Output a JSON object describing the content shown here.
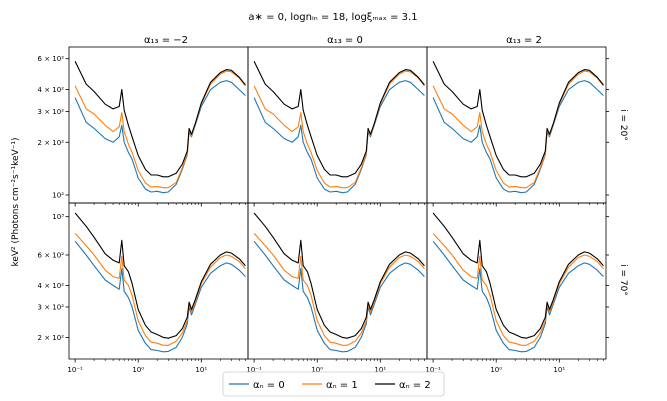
{
  "suptitle": "a∗ = 0, lognᵢₙ = 18, logξₘₐₓ = 3.1",
  "ylabel": "keV² (Photons cm⁻²s⁻¹keV⁻¹)",
  "columns": [
    "α₁₃ = −2",
    "α₁₃ = 0",
    "α₁₃ = 2"
  ],
  "rows": [
    "i = 20°",
    "i = 70°"
  ],
  "x_tick_labels": [
    "10⁻¹",
    "10⁰",
    "10¹"
  ],
  "legend": [
    {
      "label": "αₙ = 0",
      "color": "#1f77b4"
    },
    {
      "label": "αₙ = 1",
      "color": "#ff7f0e"
    },
    {
      "label": "αₙ = 2",
      "color": "#000000"
    }
  ],
  "chart_data": {
    "type": "line",
    "xscale": "log",
    "yscale": "log",
    "xlabel": "",
    "ylabel": "keV² (Photons cm⁻²s⁻¹keV⁻¹)",
    "xlim": [
      0.08,
      55
    ],
    "rows": [
      {
        "label": "i = 20°",
        "ylim": [
          90,
          700
        ],
        "y_ticks": [
          {
            "value": 100,
            "label": "10²"
          },
          {
            "value": 200,
            "label": "2 × 10²"
          },
          {
            "value": 300,
            "label": "3 × 10²"
          },
          {
            "value": 400,
            "label": "4 × 10²"
          },
          {
            "value": 600,
            "label": "6 × 10²"
          }
        ],
        "x": [
          0.1,
          0.15,
          0.2,
          0.3,
          0.4,
          0.5,
          0.55,
          0.6,
          0.7,
          0.8,
          1.0,
          1.3,
          1.6,
          2,
          2.5,
          3,
          4,
          5,
          6,
          6.4,
          7,
          8,
          10,
          14,
          20,
          25,
          30,
          40,
          50
        ],
        "series": [
          {
            "name": "αₙ = 0",
            "color": "#1f77b4",
            "values": [
              360,
              260,
              240,
              210,
              200,
              215,
              250,
              200,
              175,
              160,
              125,
              108,
              104,
              105,
              103,
              104,
              115,
              140,
              170,
              230,
              215,
              250,
              320,
              400,
              440,
              450,
              440,
              400,
              370
            ]
          },
          {
            "name": "αₙ = 1",
            "color": "#ff7f0e",
            "values": [
              420,
              310,
              290,
              250,
              230,
              245,
              295,
              230,
              195,
              175,
              138,
              117,
              111,
              112,
              110,
              110,
              118,
              143,
              172,
              235,
              218,
              253,
              330,
              430,
              490,
              510,
              505,
              465,
              420
            ]
          },
          {
            "name": "αₙ = 2",
            "color": "#000000",
            "values": [
              580,
              430,
              390,
              330,
              310,
              320,
              400,
              305,
              250,
              215,
              168,
              140,
              130,
              130,
              127,
              127,
              133,
              150,
              178,
              240,
              222,
              255,
              335,
              440,
              500,
              520,
              515,
              470,
              425
            ]
          }
        ]
      },
      {
        "label": "i = 70°",
        "ylim": [
          150,
          1200
        ],
        "y_ticks": [
          {
            "value": 200,
            "label": "2 × 10²"
          },
          {
            "value": 300,
            "label": "3 × 10²"
          },
          {
            "value": 400,
            "label": "4 × 10²"
          },
          {
            "value": 600,
            "label": "6 × 10²"
          },
          {
            "value": 1000,
            "label": "10³"
          }
        ],
        "x": [
          0.1,
          0.15,
          0.2,
          0.3,
          0.4,
          0.5,
          0.55,
          0.6,
          0.7,
          0.8,
          1.0,
          1.3,
          1.6,
          2,
          2.5,
          3,
          4,
          5,
          6,
          6.4,
          7,
          8,
          10,
          14,
          20,
          25,
          30,
          40,
          50
        ],
        "series": [
          {
            "name": "αₙ = 0",
            "color": "#1f77b4",
            "values": [
              720,
              600,
              520,
              430,
              400,
              380,
              500,
              370,
              340,
              300,
              220,
              185,
              170,
              168,
              165,
              166,
              175,
              200,
              240,
              300,
              270,
              310,
              390,
              470,
              520,
              540,
              530,
              490,
              450
            ]
          },
          {
            "name": "αₙ = 1",
            "color": "#ff7f0e",
            "values": [
              800,
              680,
              600,
              490,
              450,
              440,
              590,
              430,
              400,
              350,
              250,
              205,
              188,
              185,
              180,
              180,
              190,
              212,
              250,
              310,
              280,
              320,
              410,
              510,
              580,
              600,
              590,
              550,
              500
            ]
          },
          {
            "name": "αₙ = 2",
            "color": "#000000",
            "values": [
              1050,
              880,
              760,
              610,
              560,
              540,
              730,
              520,
              480,
              410,
              290,
              235,
              215,
              208,
              200,
              198,
              205,
              225,
              262,
              320,
              290,
              330,
              420,
              530,
              600,
              625,
              615,
              570,
              520
            ]
          }
        ]
      }
    ],
    "columns": [
      {
        "label": "α₁₃ = −2",
        "scale": 1.0
      },
      {
        "label": "α₁₃ = 0",
        "scale": 1.0
      },
      {
        "label": "α₁₃ = 2",
        "scale": 1.0
      }
    ]
  }
}
